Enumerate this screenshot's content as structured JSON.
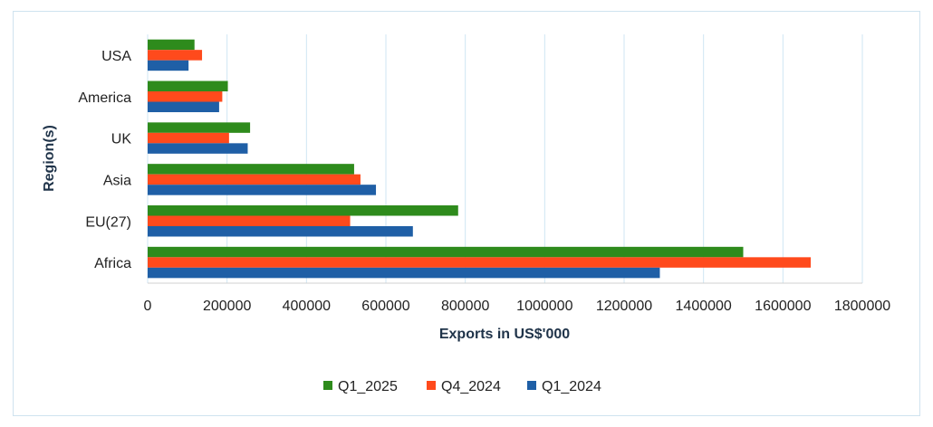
{
  "chart_data": {
    "type": "bar",
    "orientation": "horizontal",
    "categories": [
      "USA",
      "America",
      "UK",
      "Asia",
      "EU(27)",
      "Africa"
    ],
    "series": [
      {
        "name": "Q1_2025",
        "color": "#2e8b1c",
        "values": [
          118000,
          202000,
          258000,
          520000,
          782000,
          1500000
        ]
      },
      {
        "name": "Q4_2024",
        "color": "#ff4a1c",
        "values": [
          137000,
          188000,
          205000,
          536000,
          510000,
          1670000
        ]
      },
      {
        "name": "Q1_2024",
        "color": "#1f5fa6",
        "values": [
          103000,
          180000,
          252000,
          575000,
          668000,
          1290000
        ]
      }
    ],
    "xlabel": "Exports in US$'000",
    "ylabel": "Region(s)",
    "xlim": [
      0,
      1800000
    ],
    "xticks": [
      0,
      200000,
      400000,
      600000,
      800000,
      1000000,
      1200000,
      1400000,
      1600000,
      1800000
    ],
    "grid": "vertical",
    "legend_position": "bottom",
    "legend_order": [
      "Q1_2025",
      "Q4_2024",
      "Q1_2024"
    ]
  }
}
